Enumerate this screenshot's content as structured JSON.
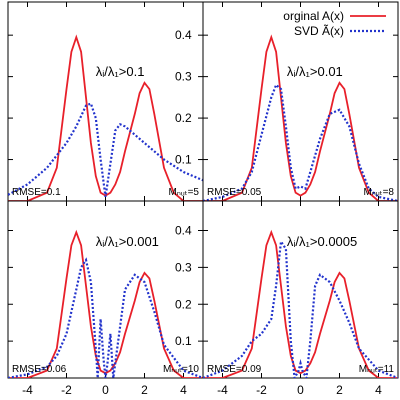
{
  "chart_data": {
    "type": "line",
    "layout": "2x2",
    "legend": {
      "position": "top-right",
      "entries": [
        {
          "label": "orginal A(x)",
          "color": "#e8202a",
          "style": "solid"
        },
        {
          "label": "SVD Ã(x)",
          "color": "#2233cc",
          "style": "dotted"
        }
      ]
    },
    "x_ticks": [
      -4,
      -2,
      0,
      2,
      4
    ],
    "y_ticks": [
      0.4,
      0.3,
      0.2,
      0.1,
      0
    ],
    "xlim": [
      -5,
      5
    ],
    "ylim": [
      0,
      0.48
    ],
    "panels": [
      {
        "condition": "λᵢ/λ₁>0.1",
        "rmse": "RMSE=0.1",
        "mcut": "Mₙᵤₜ=5",
        "series": [
          {
            "name": "orginal A(x)",
            "x": [
              -5,
              -4,
              -3,
              -2.5,
              -2,
              -1.75,
              -1.5,
              -1.25,
              -1,
              -0.75,
              -0.5,
              -0.25,
              0,
              0.25,
              0.5,
              0.75,
              1,
              1.5,
              1.75,
              2,
              2.25,
              2.5,
              3,
              3.5,
              4,
              5
            ],
            "y": [
              0,
              0,
              0.02,
              0.08,
              0.27,
              0.36,
              0.395,
              0.36,
              0.25,
              0.14,
              0.06,
              0.02,
              0.013,
              0.02,
              0.04,
              0.07,
              0.12,
              0.21,
              0.26,
              0.285,
              0.27,
              0.21,
              0.08,
              0.02,
              0,
              0
            ]
          },
          {
            "name": "SVD Ã(x)",
            "x": [
              -5,
              -4,
              -3,
              -2,
              -1.5,
              -1,
              -0.75,
              -0.5,
              -0.25,
              0,
              0.25,
              0.5,
              0.75,
              1,
              1.5,
              2,
              2.5,
              3,
              4,
              5
            ],
            "y": [
              0.015,
              0.04,
              0.08,
              0.14,
              0.18,
              0.23,
              0.235,
              0.2,
              0.1,
              0.01,
              0.09,
              0.17,
              0.185,
              0.18,
              0.16,
              0.14,
              0.12,
              0.1,
              0.07,
              0.05
            ]
          }
        ]
      },
      {
        "condition": "λᵢ/λ₁>0.01",
        "rmse": "RMSE=0.05",
        "mcut": "Mₙᵤₜ=8",
        "series": [
          {
            "name": "orginal A(x)",
            "x": [
              -5,
              -4,
              -3,
              -2.5,
              -2,
              -1.75,
              -1.5,
              -1.25,
              -1,
              -0.75,
              -0.5,
              -0.25,
              0,
              0.25,
              0.5,
              0.75,
              1,
              1.5,
              1.75,
              2,
              2.25,
              2.5,
              3,
              3.5,
              4,
              5
            ],
            "y": [
              0,
              0,
              0.02,
              0.08,
              0.27,
              0.36,
              0.395,
              0.36,
              0.25,
              0.14,
              0.06,
              0.02,
              0.013,
              0.02,
              0.04,
              0.07,
              0.12,
              0.21,
              0.26,
              0.285,
              0.27,
              0.21,
              0.08,
              0.02,
              0,
              0
            ]
          },
          {
            "name": "SVD Ã(x)",
            "x": [
              -5,
              -4,
              -3.5,
              -3,
              -2.5,
              -2,
              -1.5,
              -1.25,
              -1,
              -0.75,
              -0.5,
              -0.25,
              0,
              0.25,
              0.5,
              1,
              1.5,
              2,
              2.5,
              3,
              3.5,
              4,
              5
            ],
            "y": [
              0,
              0.01,
              0.02,
              0.03,
              0.07,
              0.16,
              0.25,
              0.28,
              0.27,
              0.18,
              0.08,
              0.03,
              0.035,
              0.03,
              0.07,
              0.15,
              0.21,
              0.22,
              0.18,
              0.09,
              0.03,
              0.01,
              0
            ]
          }
        ]
      },
      {
        "condition": "λᵢ/λ₁>0.001",
        "rmse": "RMSE=0.06",
        "mcut": "Mₙᵤₜ=10",
        "series": [
          {
            "name": "orginal A(x)",
            "x": [
              -5,
              -4,
              -3,
              -2.5,
              -2,
              -1.75,
              -1.5,
              -1.25,
              -1,
              -0.75,
              -0.5,
              -0.25,
              0,
              0.25,
              0.5,
              0.75,
              1,
              1.5,
              1.75,
              2,
              2.25,
              2.5,
              3,
              3.5,
              4,
              5
            ],
            "y": [
              0,
              0,
              0.02,
              0.08,
              0.27,
              0.36,
              0.395,
              0.36,
              0.25,
              0.14,
              0.06,
              0.02,
              0.013,
              0.02,
              0.04,
              0.07,
              0.12,
              0.21,
              0.26,
              0.285,
              0.27,
              0.21,
              0.08,
              0.02,
              0,
              0
            ]
          },
          {
            "name": "SVD Ã(x)",
            "x": [
              -5,
              -4,
              -3,
              -2.5,
              -2,
              -1.5,
              -1.25,
              -1,
              -0.75,
              -0.5,
              -0.4,
              -0.25,
              -0.1,
              0,
              0.1,
              0.25,
              0.4,
              0.6,
              1,
              1.5,
              2,
              2.5,
              3,
              4,
              5
            ],
            "y": [
              0,
              0.01,
              0.03,
              0.06,
              0.12,
              0.24,
              0.3,
              0.32,
              0.26,
              0.08,
              0,
              0.16,
              0.05,
              0,
              0.04,
              0.12,
              0,
              0.08,
              0.24,
              0.28,
              0.26,
              0.18,
              0.09,
              0.02,
              0
            ]
          }
        ]
      },
      {
        "condition": "λᵢ/λ₁>0.0005",
        "rmse": "RMSE=0.09",
        "mcut": "Mₙᵤₜ=11",
        "series": [
          {
            "name": "orginal A(x)",
            "x": [
              -5,
              -4,
              -3,
              -2.5,
              -2,
              -1.75,
              -1.5,
              -1.25,
              -1,
              -0.75,
              -0.5,
              -0.25,
              0,
              0.25,
              0.5,
              0.75,
              1,
              1.5,
              1.75,
              2,
              2.25,
              2.5,
              3,
              3.5,
              4,
              5
            ],
            "y": [
              0,
              0,
              0.02,
              0.08,
              0.27,
              0.36,
              0.395,
              0.36,
              0.25,
              0.14,
              0.06,
              0.02,
              0.013,
              0.02,
              0.04,
              0.07,
              0.12,
              0.21,
              0.26,
              0.285,
              0.27,
              0.21,
              0.08,
              0.02,
              0,
              0
            ]
          },
          {
            "name": "SVD Ã(x)",
            "x": [
              -5,
              -4,
              -3,
              -2.5,
              -2,
              -1.5,
              -1.25,
              -1,
              -0.75,
              -0.5,
              -0.3,
              -0.1,
              0,
              0.1,
              0.3,
              0.5,
              0.75,
              1,
              1.5,
              2,
              2.5,
              3,
              4,
              5
            ],
            "y": [
              0,
              0.02,
              0.06,
              0.1,
              0.12,
              0.16,
              0.25,
              0.37,
              0.35,
              0.1,
              0,
              0.02,
              0.04,
              0.02,
              0,
              0.1,
              0.25,
              0.28,
              0.26,
              0.21,
              0.15,
              0.08,
              0.02,
              0
            ]
          }
        ]
      }
    ]
  }
}
